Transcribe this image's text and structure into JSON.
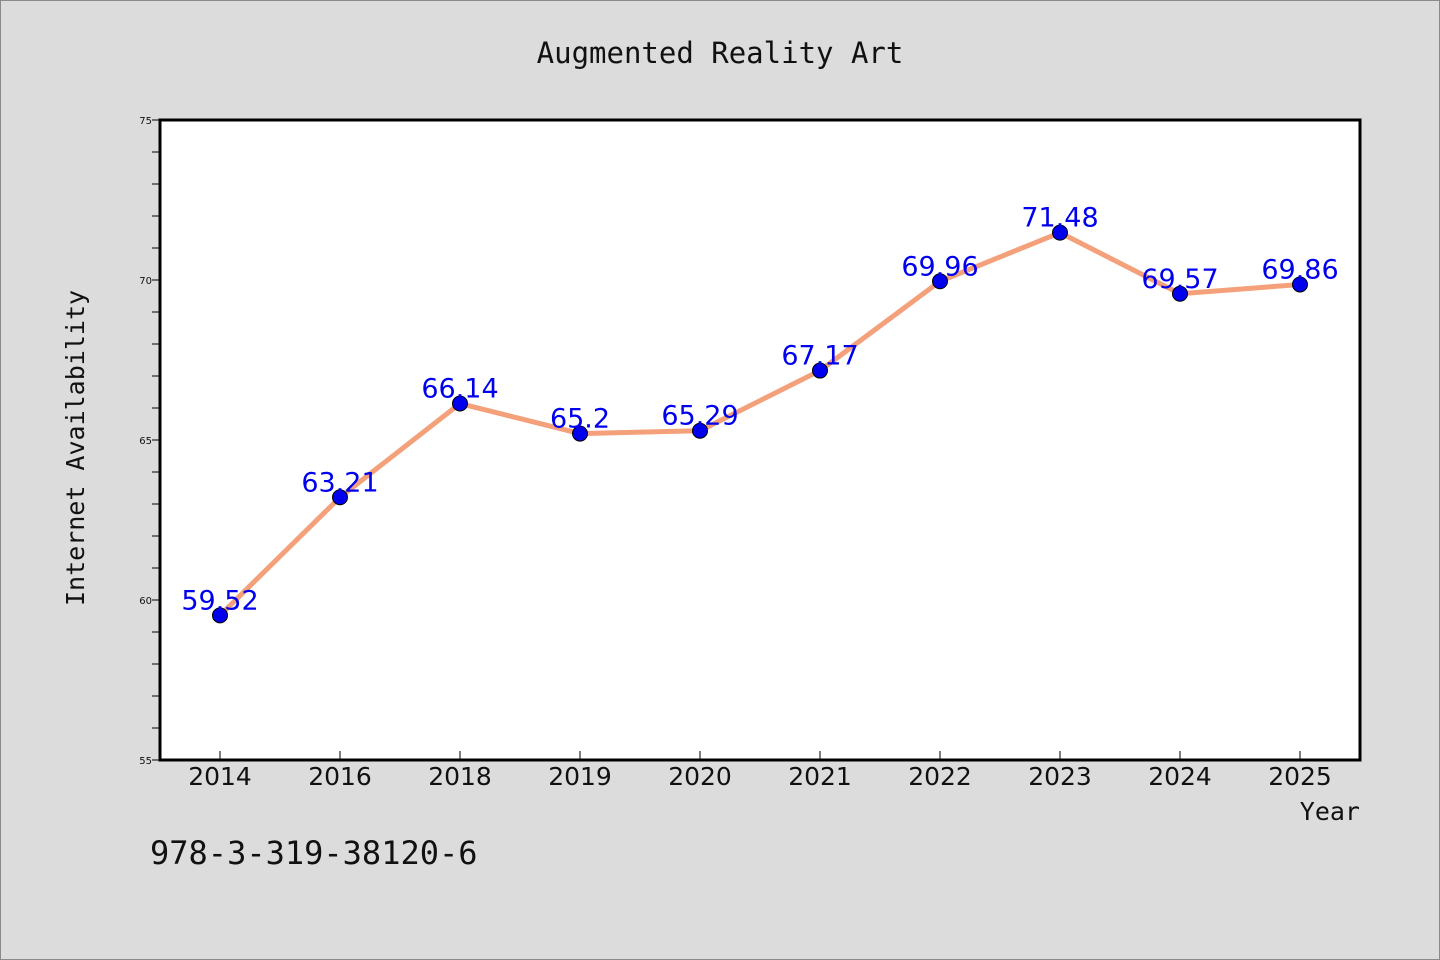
{
  "chart_data": {
    "type": "line",
    "title": "Augmented Reality Art",
    "xlabel": "Year",
    "ylabel": "Internet Availability",
    "categories": [
      "2014",
      "2016",
      "2018",
      "2019",
      "2020",
      "2021",
      "2022",
      "2023",
      "2024",
      "2025"
    ],
    "series": [
      {
        "values": [
          59.52,
          63.21,
          66.14,
          65.2,
          65.29,
          67.17,
          69.96,
          71.48,
          69.57,
          69.86
        ],
        "labels": [
          "59.52",
          "63.21",
          "66.14",
          "65.2",
          "65.29",
          "67.17",
          "69.96",
          "71.48",
          "69.57",
          "69.86"
        ],
        "line_color": "#f4a07a",
        "marker_color": "#0000ee",
        "label_color": "#0000ee"
      }
    ],
    "ylim": [
      55,
      75
    ],
    "yticks": [
      55,
      60,
      65,
      70,
      75
    ],
    "grid": false,
    "legend": "none",
    "plot_background": "#ffffff",
    "figure_background": "#dcdcdc"
  },
  "footnote": "978-3-319-38120-6"
}
